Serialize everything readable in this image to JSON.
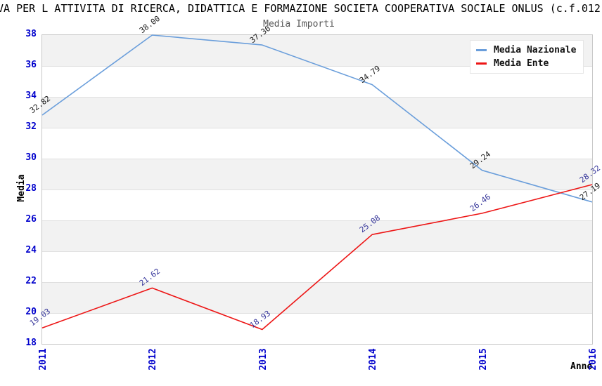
{
  "chart": {
    "title": "VA PER L ATTIVITA DI RICERCA, DIDATTICA E FORMAZIONE SOCIETA COOPERATIVA SOCIALE ONLUS (c.f.012",
    "subtitle": "Media Importi"
  },
  "chart_data": {
    "type": "line",
    "title": "VA PER L ATTIVITA DI RICERCA, DIDATTICA E FORMAZIONE SOCIETA COOPERATIVA SOCIALE ONLUS (c.f.012",
    "subtitle": "Media Importi",
    "categories": [
      "2011",
      "2012",
      "2013",
      "2014",
      "2015",
      "2016"
    ],
    "series": [
      {
        "name": "Media Nazionale",
        "color": "#6a9edb",
        "label_color": "#1a1a1a",
        "values": [
          32.82,
          38.0,
          37.36,
          34.79,
          29.24,
          27.19
        ]
      },
      {
        "name": "Media Ente",
        "color": "#ed1515",
        "label_color": "#333399",
        "values": [
          19.03,
          21.62,
          18.93,
          25.08,
          26.46,
          28.32
        ]
      }
    ],
    "xlabel": "Anno",
    "ylabel": "Media",
    "ylim": [
      18,
      38
    ],
    "ytick_step": 2,
    "grid": "horizontal-alternating-bands",
    "legend_position": "top-right",
    "colors": {
      "axis_tick_labels": "#0000cc",
      "band_gray": "#f2f2f2",
      "band_line": "#e0e0e0",
      "plot_border": "#c9c9c9",
      "subtitle_text": "#555555"
    }
  }
}
